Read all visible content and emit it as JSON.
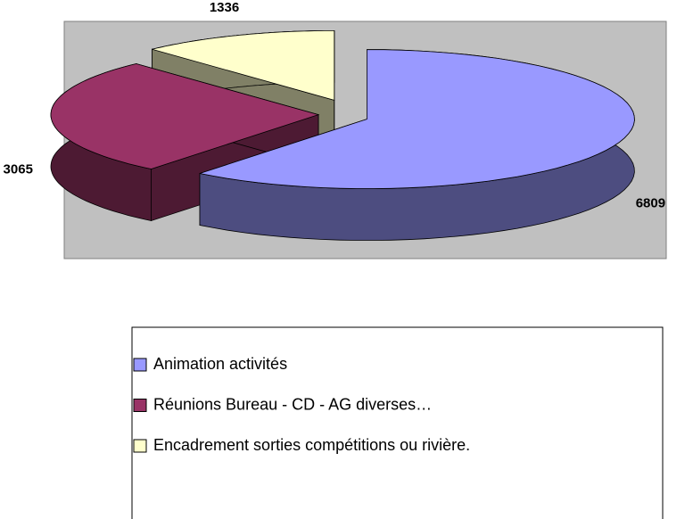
{
  "chart_data": {
    "type": "pie3d",
    "categories": [
      "Animation activités",
      "Réunions Bureau - CD - AG  diverses…",
      "Encadrement sorties compétitions ou rivière."
    ],
    "values": [
      6809,
      3065,
      1336
    ],
    "colors": [
      "#9999ff",
      "#993366",
      "#ffffcc"
    ],
    "legend": "bottom"
  }
}
